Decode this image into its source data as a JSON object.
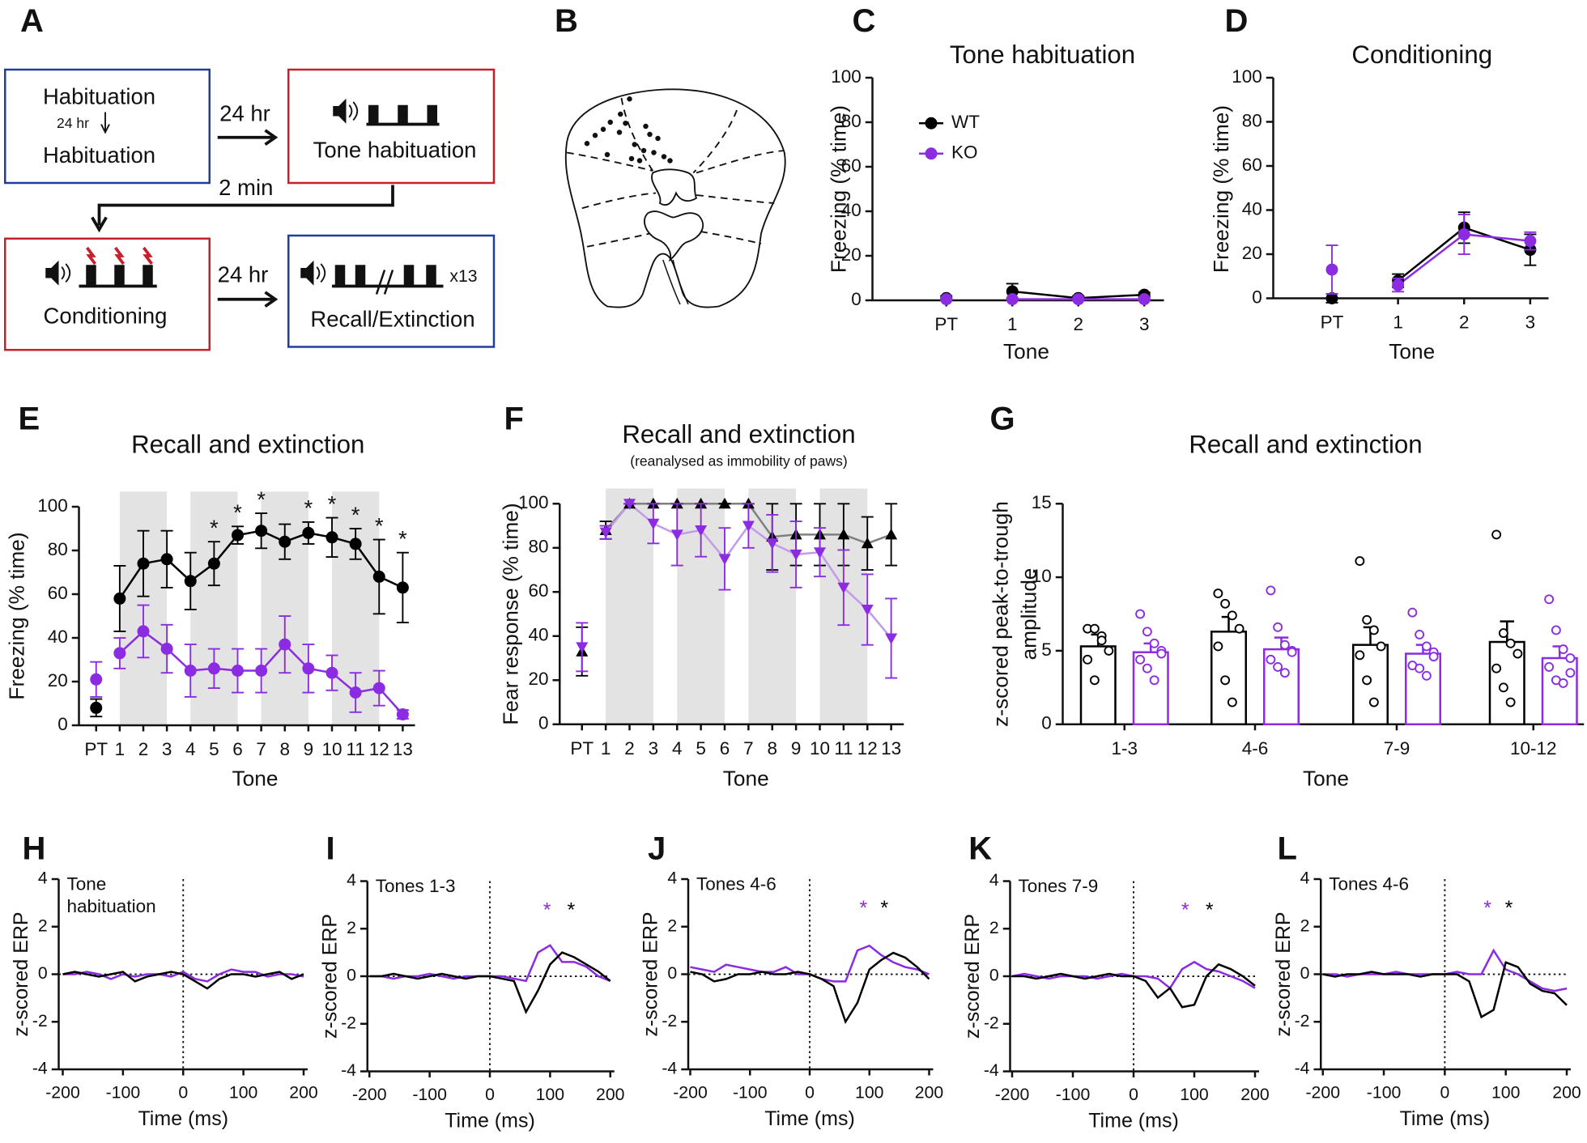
{
  "panel_labels": [
    "A",
    "B",
    "C",
    "D",
    "E",
    "F",
    "G",
    "H",
    "I",
    "J",
    "K",
    "L"
  ],
  "diagram_a": {
    "habituation_1": "Habituation",
    "interval": "24 hr",
    "habituation_2": "Habituation",
    "arrow_1": "24 hr",
    "tone_habituation": "Tone habituation",
    "gap": "2 min",
    "conditioning": "Conditioning",
    "arrow_2": "24 hr",
    "recall_extinction": "Recall/Extinction",
    "repeats": "x13"
  },
  "chart_data": [
    {
      "type": "line",
      "title": "Tone habituation",
      "x_label": "Tone",
      "y_label": "Freezing (% time)",
      "categories": [
        "PT",
        "1",
        "2",
        "3"
      ],
      "ylim": [
        0,
        100
      ],
      "yticks": [
        0,
        20,
        40,
        60,
        80,
        100
      ],
      "legend": "upper left",
      "series": [
        {
          "name": "WT",
          "color": "#000000",
          "line_color": "#000000",
          "marker": "circle",
          "values": [
            1,
            4,
            1,
            2.5
          ],
          "errors": [
            1,
            3.5,
            1,
            1
          ]
        },
        {
          "name": "KO",
          "color": "#8b2be2",
          "line_color": "#8b2be2",
          "marker": "circle",
          "values": [
            0.5,
            0.5,
            0.5,
            0.5
          ],
          "errors": [
            0.5,
            0.5,
            0.5,
            0.5
          ]
        }
      ]
    },
    {
      "type": "line",
      "title": "Conditioning",
      "x_label": "Tone",
      "y_label": "Freezing (% time)",
      "categories": [
        "PT",
        "1",
        "2",
        "3"
      ],
      "ylim": [
        0,
        100
      ],
      "yticks": [
        0,
        20,
        40,
        60,
        80,
        100
      ],
      "series": [
        {
          "color": "#000000",
          "line_color": "#000000",
          "marker": "circle",
          "values": [
            0,
            8,
            32,
            22
          ],
          "errors": [
            2,
            3,
            7,
            7
          ]
        },
        {
          "color": "#8b2be2",
          "line_color": "#8b2be2",
          "marker": "circle",
          "values": [
            13,
            6,
            29,
            26
          ],
          "errors": [
            11,
            3,
            9,
            4
          ]
        }
      ]
    },
    {
      "type": "line",
      "title": "Recall and extinction",
      "x_label": "Tone",
      "y_label": "Freezing (% time)",
      "categories": [
        "PT",
        "1",
        "2",
        "3",
        "4",
        "5",
        "6",
        "7",
        "8",
        "9",
        "10",
        "11",
        "12",
        "13"
      ],
      "ylim": [
        0,
        100
      ],
      "yticks": [
        0,
        20,
        40,
        60,
        80,
        100
      ],
      "shading": true,
      "significance": [
        null,
        null,
        null,
        null,
        null,
        "*",
        "*",
        "*",
        null,
        "*",
        "*",
        "*",
        "*",
        "*"
      ],
      "series": [
        {
          "color": "#000000",
          "line_color": "#000000",
          "marker": "circle",
          "values": [
            8,
            58,
            74,
            76,
            66,
            74,
            87,
            89,
            84,
            88,
            86,
            83,
            68,
            63
          ],
          "errors": [
            4,
            15,
            15,
            13,
            13,
            10,
            4,
            8,
            8,
            5,
            9,
            7,
            17,
            16
          ]
        },
        {
          "color": "#8b2be2",
          "line_color": "#8b2be2",
          "marker": "circle",
          "values": [
            21,
            33,
            43,
            35,
            25,
            26,
            25,
            25,
            37,
            26,
            24,
            15,
            17,
            5
          ],
          "errors": [
            8,
            7,
            12,
            11,
            12,
            9,
            10,
            10,
            13,
            11,
            8,
            9,
            8,
            2
          ]
        }
      ]
    },
    {
      "type": "line",
      "title": "Recall and extinction",
      "subtitle": "(reanalysed as immobility of paws)",
      "x_label": "Tone",
      "y_label": "Fear response (% time)",
      "categories": [
        "PT",
        "1",
        "2",
        "3",
        "4",
        "5",
        "6",
        "7",
        "8",
        "9",
        "10",
        "11",
        "12",
        "13"
      ],
      "ylim": [
        0,
        100
      ],
      "yticks": [
        0,
        20,
        40,
        60,
        80,
        100
      ],
      "shading": true,
      "series": [
        {
          "color": "#000000",
          "line_color": "#808080",
          "marker": "triangle-up",
          "values": [
            33,
            88,
            100,
            100,
            100,
            100,
            100,
            100,
            85,
            86,
            86,
            86,
            82,
            86
          ],
          "errors": [
            11,
            4,
            0,
            0,
            0,
            0,
            0,
            0,
            15,
            14,
            14,
            14,
            12,
            14
          ]
        },
        {
          "color": "#8b2be2",
          "line_color": "#c49ae8",
          "marker": "triangle-down",
          "values": [
            35,
            87,
            100,
            91,
            86,
            88,
            75,
            90,
            82,
            77,
            78,
            62,
            52,
            39
          ],
          "errors": [
            11,
            3,
            0,
            9,
            14,
            12,
            14,
            10,
            13,
            15,
            11,
            17,
            16,
            18
          ]
        }
      ]
    },
    {
      "type": "bar",
      "title": "Recall and extinction",
      "x_label": "Tone",
      "y_label": [
        "z-scored peak-to-trough",
        "amplitude"
      ],
      "categories": [
        "1-3",
        "4-6",
        "7-9",
        "10-12"
      ],
      "ylim": [
        0,
        15
      ],
      "yticks": [
        0,
        5,
        10,
        15
      ],
      "series": [
        {
          "color": "#000000",
          "values": [
            5.3,
            6.3,
            5.4,
            5.6
          ],
          "errors": [
            0.8,
            1.0,
            1.2,
            1.4
          ],
          "points": [
            [
              6.5,
              6.5,
              6.0,
              5.0,
              4.4,
              3.0,
              5.7
            ],
            [
              8.9,
              8.2,
              7.4,
              6.5,
              5.3,
              3.0,
              1.5
            ],
            [
              11.1,
              7.1,
              6.4,
              5.3,
              4.7,
              3.0,
              1.5
            ],
            [
              12.9,
              6.2,
              5.5,
              4.8,
              3.8,
              2.5,
              1.5
            ]
          ]
        },
        {
          "color": "#8b2be2",
          "values": [
            4.9,
            5.1,
            4.8,
            4.5
          ],
          "errors": [
            0.6,
            0.8,
            0.6,
            0.8
          ],
          "points": [
            [
              7.5,
              6.3,
              5.5,
              5.0,
              4.4,
              3.8,
              3.0,
              4.8
            ],
            [
              9.1,
              6.6,
              5.4,
              5.0,
              4.4,
              3.9,
              3.5,
              4.9
            ],
            [
              7.6,
              6.1,
              5.3,
              4.9,
              4.0,
              3.8,
              3.3,
              4.6
            ],
            [
              8.5,
              6.4,
              5.1,
              4.5,
              3.9,
              3.0,
              2.8,
              3.5
            ]
          ]
        }
      ]
    },
    {
      "type": "line",
      "label": [
        "Tone",
        "habituation"
      ],
      "x_label": "Time (ms)",
      "y_label": "z-scored ERP",
      "xlim": [
        -200,
        200
      ],
      "xticks": [
        -200,
        -100,
        0,
        100,
        200
      ],
      "ylim": [
        -4,
        4
      ],
      "yticks": [
        -4,
        -2,
        0,
        2,
        4
      ],
      "zero_lines": true,
      "x": [
        -200,
        -180,
        -160,
        -140,
        -120,
        -100,
        -80,
        -60,
        -40,
        -20,
        0,
        20,
        40,
        60,
        80,
        100,
        120,
        140,
        160,
        180,
        200
      ],
      "series": [
        {
          "color": "#000000",
          "values": [
            0,
            0.1,
            0,
            -0.1,
            0,
            0.1,
            -0.3,
            -0.1,
            0,
            0.1,
            0,
            -0.3,
            -0.6,
            -0.2,
            0,
            0,
            -0.1,
            0,
            0.1,
            -0.2,
            0
          ]
        },
        {
          "color": "#8b2be2",
          "values": [
            0,
            0,
            0.1,
            0,
            -0.2,
            0,
            -0.1,
            0,
            0,
            -0.1,
            0.1,
            -0.2,
            -0.3,
            0,
            0.2,
            0.1,
            0.1,
            -0.1,
            0,
            0,
            -0.1
          ]
        }
      ]
    },
    {
      "type": "line",
      "label": [
        "Tones 1-3"
      ],
      "x_label": "Time (ms)",
      "y_label": "z-scored ERP",
      "xlim": [
        -200,
        200
      ],
      "xticks": [
        -200,
        -100,
        0,
        100,
        200
      ],
      "ylim": [
        -4,
        4
      ],
      "yticks": [
        -4,
        -2,
        0,
        2,
        4
      ],
      "zero_lines": true,
      "annotations": [
        {
          "text": "*",
          "x": 95,
          "color": "#8b2be2"
        },
        {
          "text": "*",
          "x": 135,
          "color": "#000000"
        }
      ],
      "x": [
        -200,
        -180,
        -160,
        -140,
        -120,
        -100,
        -80,
        -60,
        -40,
        -20,
        0,
        20,
        40,
        60,
        80,
        100,
        120,
        140,
        160,
        180,
        200
      ],
      "series": [
        {
          "color": "#000000",
          "values": [
            0,
            0,
            0.1,
            0,
            -0.1,
            0,
            0.1,
            0,
            -0.1,
            0,
            0,
            -0.1,
            -0.2,
            -1.5,
            -0.6,
            0.5,
            1.0,
            0.8,
            0.5,
            0.2,
            -0.2
          ]
        },
        {
          "color": "#8b2be2",
          "values": [
            0,
            0,
            -0.1,
            0,
            0,
            0.1,
            0,
            -0.1,
            0,
            0,
            0,
            0,
            -0.1,
            -0.2,
            1.0,
            1.3,
            0.6,
            0.6,
            0.4,
            0,
            -0.2
          ]
        }
      ]
    },
    {
      "type": "line",
      "label": [
        "Tones 4-6"
      ],
      "x_label": "Time (ms)",
      "y_label": "z-scored ERP",
      "xlim": [
        -200,
        200
      ],
      "xticks": [
        -200,
        -100,
        0,
        100,
        200
      ],
      "ylim": [
        -4,
        4
      ],
      "yticks": [
        -4,
        -2,
        0,
        2,
        4
      ],
      "zero_lines": true,
      "annotations": [
        {
          "text": "*",
          "x": 90,
          "color": "#8b2be2"
        },
        {
          "text": "*",
          "x": 125,
          "color": "#000000"
        }
      ],
      "x": [
        -200,
        -180,
        -160,
        -140,
        -120,
        -100,
        -80,
        -60,
        -40,
        -20,
        0,
        20,
        40,
        60,
        80,
        100,
        120,
        140,
        160,
        180,
        200
      ],
      "series": [
        {
          "color": "#000000",
          "values": [
            0.1,
            0,
            -0.3,
            -0.2,
            0,
            0,
            0.1,
            0,
            0,
            0.1,
            0,
            -0.2,
            -0.5,
            -2.0,
            -1.2,
            0.2,
            0.6,
            0.9,
            0.7,
            0.3,
            -0.2
          ]
        },
        {
          "color": "#8b2be2",
          "values": [
            0.3,
            0.2,
            0.1,
            0.4,
            0.3,
            0.2,
            0.1,
            0.1,
            0.3,
            0,
            0,
            -0.2,
            -0.3,
            -0.3,
            1.0,
            1.2,
            0.8,
            0.5,
            0.3,
            0.2,
            0
          ]
        }
      ]
    },
    {
      "type": "line",
      "label": [
        "Tones 7-9"
      ],
      "x_label": "Time (ms)",
      "y_label": "z-scored ERP",
      "xlim": [
        -200,
        200
      ],
      "xticks": [
        -200,
        -100,
        0,
        100,
        200
      ],
      "ylim": [
        -4,
        4
      ],
      "yticks": [
        -4,
        -2,
        0,
        2,
        4
      ],
      "zero_lines": true,
      "annotations": [
        {
          "text": "*",
          "x": 85,
          "color": "#8b2be2"
        },
        {
          "text": "*",
          "x": 125,
          "color": "#000000"
        }
      ],
      "x": [
        -200,
        -180,
        -160,
        -140,
        -120,
        -100,
        -80,
        -60,
        -40,
        -20,
        0,
        20,
        40,
        60,
        80,
        100,
        120,
        140,
        160,
        180,
        200
      ],
      "series": [
        {
          "color": "#000000",
          "values": [
            0,
            0,
            -0.1,
            0,
            0.1,
            0,
            -0.1,
            0,
            0.1,
            0,
            0,
            -0.2,
            -0.9,
            -0.5,
            -1.3,
            -1.2,
            0,
            0.5,
            0.3,
            0,
            -0.4
          ]
        },
        {
          "color": "#8b2be2",
          "values": [
            0,
            0.1,
            0,
            -0.1,
            0,
            0,
            0,
            -0.1,
            0,
            0.1,
            0,
            0,
            -0.1,
            -0.5,
            0.3,
            0.6,
            0.3,
            0.2,
            0,
            -0.2,
            -0.5
          ]
        }
      ]
    },
    {
      "type": "line",
      "label": [
        "Tones 4-6"
      ],
      "x_label": "Time (ms)",
      "y_label": "z-scored ERP",
      "xlim": [
        -200,
        200
      ],
      "xticks": [
        -200,
        -100,
        0,
        100,
        200
      ],
      "ylim": [
        -4,
        4
      ],
      "yticks": [
        -4,
        -2,
        0,
        2,
        4
      ],
      "zero_lines": true,
      "annotations": [
        {
          "text": "*",
          "x": 70,
          "color": "#8b2be2"
        },
        {
          "text": "*",
          "x": 105,
          "color": "#000000"
        }
      ],
      "x": [
        -200,
        -180,
        -160,
        -140,
        -120,
        -100,
        -80,
        -60,
        -40,
        -20,
        0,
        20,
        40,
        60,
        80,
        100,
        120,
        140,
        160,
        180,
        200
      ],
      "series": [
        {
          "color": "#000000",
          "values": [
            0,
            -0.1,
            0,
            0,
            0.1,
            0,
            0,
            0,
            -0.1,
            0,
            0,
            0,
            -0.3,
            -1.8,
            -1.5,
            0.5,
            0.3,
            -0.4,
            -0.7,
            -0.8,
            -1.3
          ]
        },
        {
          "color": "#8b2be2",
          "values": [
            0,
            0,
            -0.1,
            0,
            0,
            0,
            0.1,
            0,
            0,
            0,
            0,
            0.1,
            0,
            0,
            1.0,
            0.2,
            0,
            -0.3,
            -0.6,
            -0.7,
            -0.6
          ]
        }
      ]
    }
  ]
}
